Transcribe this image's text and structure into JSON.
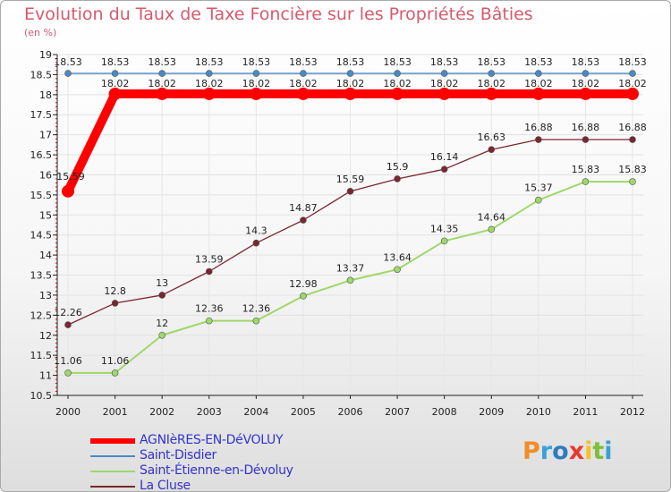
{
  "title": "Evolution du Taux de Taxe Foncière sur les Propriétés Bâties",
  "unit_label": "(en %)",
  "logo_text": "Proxiti",
  "colors": {
    "title": "#d65a6d",
    "axis": "#222222",
    "grid": "#dddddd",
    "logo": [
      "#f28c28",
      "#3aa0d8",
      "#2e7bbf",
      "#e63a2e",
      "#f2c12e",
      "#7cbf3a",
      "#3aa0d8"
    ]
  },
  "chart_data": {
    "type": "line",
    "x": [
      "2000",
      "2001",
      "2002",
      "2003",
      "2004",
      "2005",
      "2006",
      "2007",
      "2008",
      "2009",
      "2010",
      "2011",
      "2012"
    ],
    "ylim": [
      10.5,
      19
    ],
    "yticks": [
      "10.5",
      "11",
      "11.5",
      "12",
      "12.5",
      "13",
      "13.5",
      "14",
      "14.5",
      "15",
      "15.5",
      "16",
      "16.5",
      "17",
      "17.5",
      "18",
      "18.5",
      "19"
    ],
    "grid": true,
    "legend_position": "bottom-left",
    "series": [
      {
        "name": "AGNIèRES-EN-DéVOLUY",
        "color": "#ff0000",
        "legend_color": "#3333cc",
        "thick": true,
        "values": [
          15.59,
          18.02,
          18.02,
          18.02,
          18.02,
          18.02,
          18.02,
          18.02,
          18.02,
          18.02,
          18.02,
          18.02,
          18.02
        ],
        "labels": [
          "15.59",
          "18.02",
          "18.02",
          "18.02",
          "18.02",
          "18.02",
          "18.02",
          "18.02",
          "18.02",
          "18.02",
          "18.02",
          "18.02",
          "18.02"
        ]
      },
      {
        "name": "Saint-Disdier",
        "color": "#4a8ac4",
        "legend_color": "#3333cc",
        "thick": false,
        "values": [
          18.53,
          18.53,
          18.53,
          18.53,
          18.53,
          18.53,
          18.53,
          18.53,
          18.53,
          18.53,
          18.53,
          18.53,
          18.53
        ],
        "labels": [
          "18.53",
          "18.53",
          "18.53",
          "18.53",
          "18.53",
          "18.53",
          "18.53",
          "18.53",
          "18.53",
          "18.53",
          "18.53",
          "18.53",
          "18.53"
        ]
      },
      {
        "name": "Saint-Étienne-en-Dévoluy",
        "color": "#9ed86a",
        "legend_color": "#3333cc",
        "thick": false,
        "values": [
          11.06,
          11.06,
          12,
          12.36,
          12.36,
          12.98,
          13.37,
          13.64,
          14.35,
          14.64,
          15.37,
          15.83,
          15.83
        ],
        "labels": [
          "11.06",
          "11.06",
          "12",
          "12.36",
          "12.36",
          "12.98",
          "13.37",
          "13.64",
          "14.35",
          "14.64",
          "15.37",
          "15.83",
          "15.83"
        ]
      },
      {
        "name": "La Cluse",
        "color": "#7a2630",
        "legend_color": "#3333cc",
        "thick": false,
        "values": [
          12.26,
          12.8,
          13,
          13.59,
          14.3,
          14.87,
          15.59,
          15.9,
          16.14,
          16.63,
          16.88,
          16.88,
          16.88
        ],
        "labels": [
          "12.26",
          "12.8",
          "13",
          "13.59",
          "14.3",
          "14.87",
          "15.59",
          "15.9",
          "16.14",
          "16.63",
          "16.88",
          "16.88",
          "16.88"
        ]
      }
    ]
  }
}
